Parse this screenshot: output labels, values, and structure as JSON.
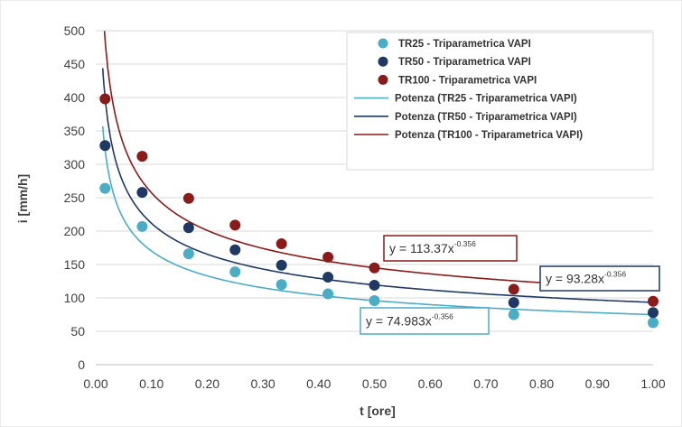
{
  "chart_data": {
    "type": "scatter",
    "title": "",
    "xlabel": "t [ore]",
    "ylabel": "i [mm/h]",
    "xlim": [
      0.0,
      1.0
    ],
    "ylim": [
      0,
      500
    ],
    "x_ticks": [
      "0.00",
      "0.10",
      "0.20",
      "0.30",
      "0.40",
      "0.50",
      "0.60",
      "0.70",
      "0.80",
      "0.90",
      "1.00"
    ],
    "y_ticks": [
      "0",
      "50",
      "100",
      "150",
      "200",
      "250",
      "300",
      "350",
      "400",
      "450",
      "500"
    ],
    "grid": "horizontal",
    "legend_position": "top-right",
    "x": [
      0.0167,
      0.0833,
      0.1667,
      0.25,
      0.3333,
      0.4167,
      0.5,
      0.75,
      1.0
    ],
    "series": [
      {
        "name": "TR25 - Triparametrica VAPI",
        "kind": "points",
        "color": "#4bacc6",
        "values": [
          264,
          207,
          166,
          139,
          120,
          106,
          96,
          75,
          63
        ]
      },
      {
        "name": "TR50 - Triparametrica VAPI",
        "kind": "points",
        "color": "#1f3864",
        "values": [
          328,
          258,
          205,
          172,
          149,
          131,
          119,
          93,
          78
        ]
      },
      {
        "name": "TR100 - Triparametrica VAPI",
        "kind": "points",
        "color": "#8b1a1a",
        "values": [
          398,
          312,
          249,
          209,
          181,
          161,
          145,
          113,
          95
        ]
      }
    ],
    "trendlines": [
      {
        "name": "Potenza (TR25 - Triparametrica VAPI)",
        "color": "#4bacc6",
        "a": 74.983,
        "b": -0.356
      },
      {
        "name": "Potenza (TR50 - Triparametrica VAPI)",
        "color": "#1f3864",
        "a": 93.28,
        "b": -0.356
      },
      {
        "name": "Potenza (TR100 - Triparametrica VAPI)",
        "color": "#8b1a1a",
        "a": 113.37,
        "b": -0.356
      }
    ],
    "annotations": [
      {
        "base": "y = 74.983x",
        "exp": "-0.356",
        "color": "#4bacc6"
      },
      {
        "base": "y = 93.28x",
        "exp": "-0.356",
        "color": "#1f3864"
      },
      {
        "base": "y = 113.37x",
        "exp": "-0.356",
        "color": "#8b1a1a"
      }
    ]
  }
}
